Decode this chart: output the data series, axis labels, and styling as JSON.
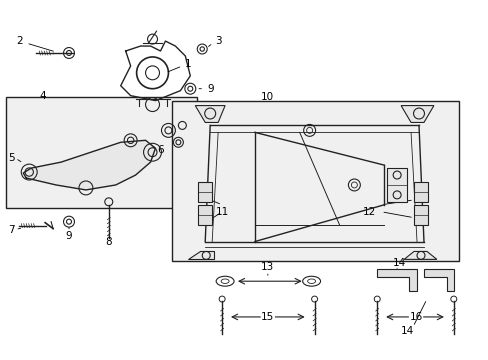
{
  "title": "",
  "bg_color": "#ffffff",
  "line_color": "#222222",
  "label_color": "#000000",
  "fig_width": 4.89,
  "fig_height": 3.6,
  "dpi": 100
}
